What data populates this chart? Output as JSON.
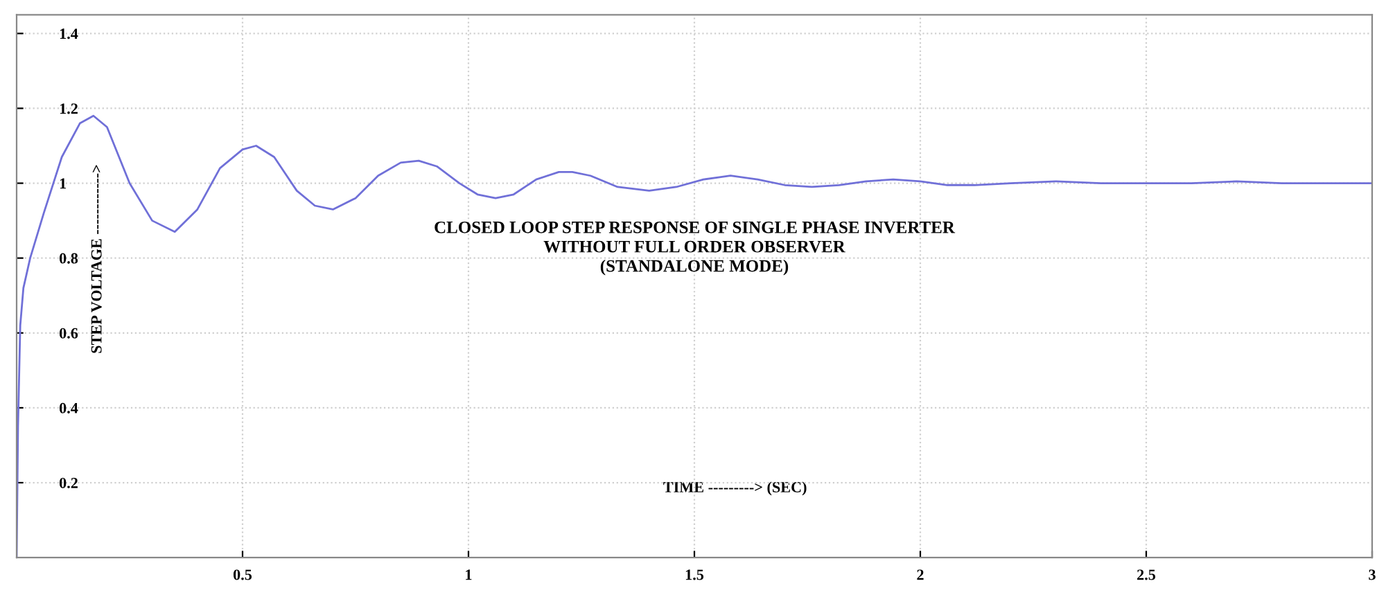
{
  "chart_data": {
    "type": "line",
    "title": "CLOSED LOOP STEP RESPONSE OF SINGLE PHASE INVERTER\nWITHOUT FULL ORDER OBSERVER\n(STANDALONE MODE)",
    "xlabel": "TIME ---------> (SEC)",
    "ylabel": "STEP VOLTAGE ------------>",
    "series": [
      {
        "color": "#7070d8",
        "x": [
          0,
          0.003,
          0.008,
          0.015,
          0.03,
          0.06,
          0.1,
          0.14,
          0.17,
          0.2,
          0.25,
          0.3,
          0.35,
          0.4,
          0.45,
          0.5,
          0.53,
          0.57,
          0.62,
          0.66,
          0.7,
          0.75,
          0.8,
          0.85,
          0.89,
          0.93,
          0.98,
          1.02,
          1.06,
          1.1,
          1.15,
          1.2,
          1.23,
          1.27,
          1.33,
          1.4,
          1.46,
          1.52,
          1.58,
          1.64,
          1.7,
          1.76,
          1.82,
          1.88,
          1.94,
          2.0,
          2.06,
          2.12,
          2.2,
          2.3,
          2.4,
          2.5,
          2.6,
          2.7,
          2.8,
          2.9,
          3.0
        ],
        "values": [
          0,
          0.35,
          0.62,
          0.72,
          0.8,
          0.92,
          1.07,
          1.16,
          1.18,
          1.15,
          1.0,
          0.9,
          0.87,
          0.93,
          1.04,
          1.09,
          1.1,
          1.07,
          0.98,
          0.94,
          0.93,
          0.96,
          1.02,
          1.055,
          1.06,
          1.045,
          1.0,
          0.97,
          0.96,
          0.97,
          1.01,
          1.03,
          1.03,
          1.02,
          0.99,
          0.98,
          0.99,
          1.01,
          1.02,
          1.01,
          0.995,
          0.99,
          0.995,
          1.005,
          1.01,
          1.005,
          0.995,
          0.995,
          1.0,
          1.005,
          1.0,
          1.0,
          1.0,
          1.005,
          1.0,
          1.0,
          1.0
        ]
      }
    ],
    "xlim": [
      0,
      3
    ],
    "ylim": [
      0,
      1.45
    ],
    "xticks": [
      0.5,
      1,
      1.5,
      2,
      2.5,
      3
    ],
    "yticks": [
      0.2,
      0.4,
      0.6,
      0.8,
      1,
      1.2,
      1.4
    ],
    "grid": true,
    "marker": "none",
    "line_style": "solid"
  }
}
